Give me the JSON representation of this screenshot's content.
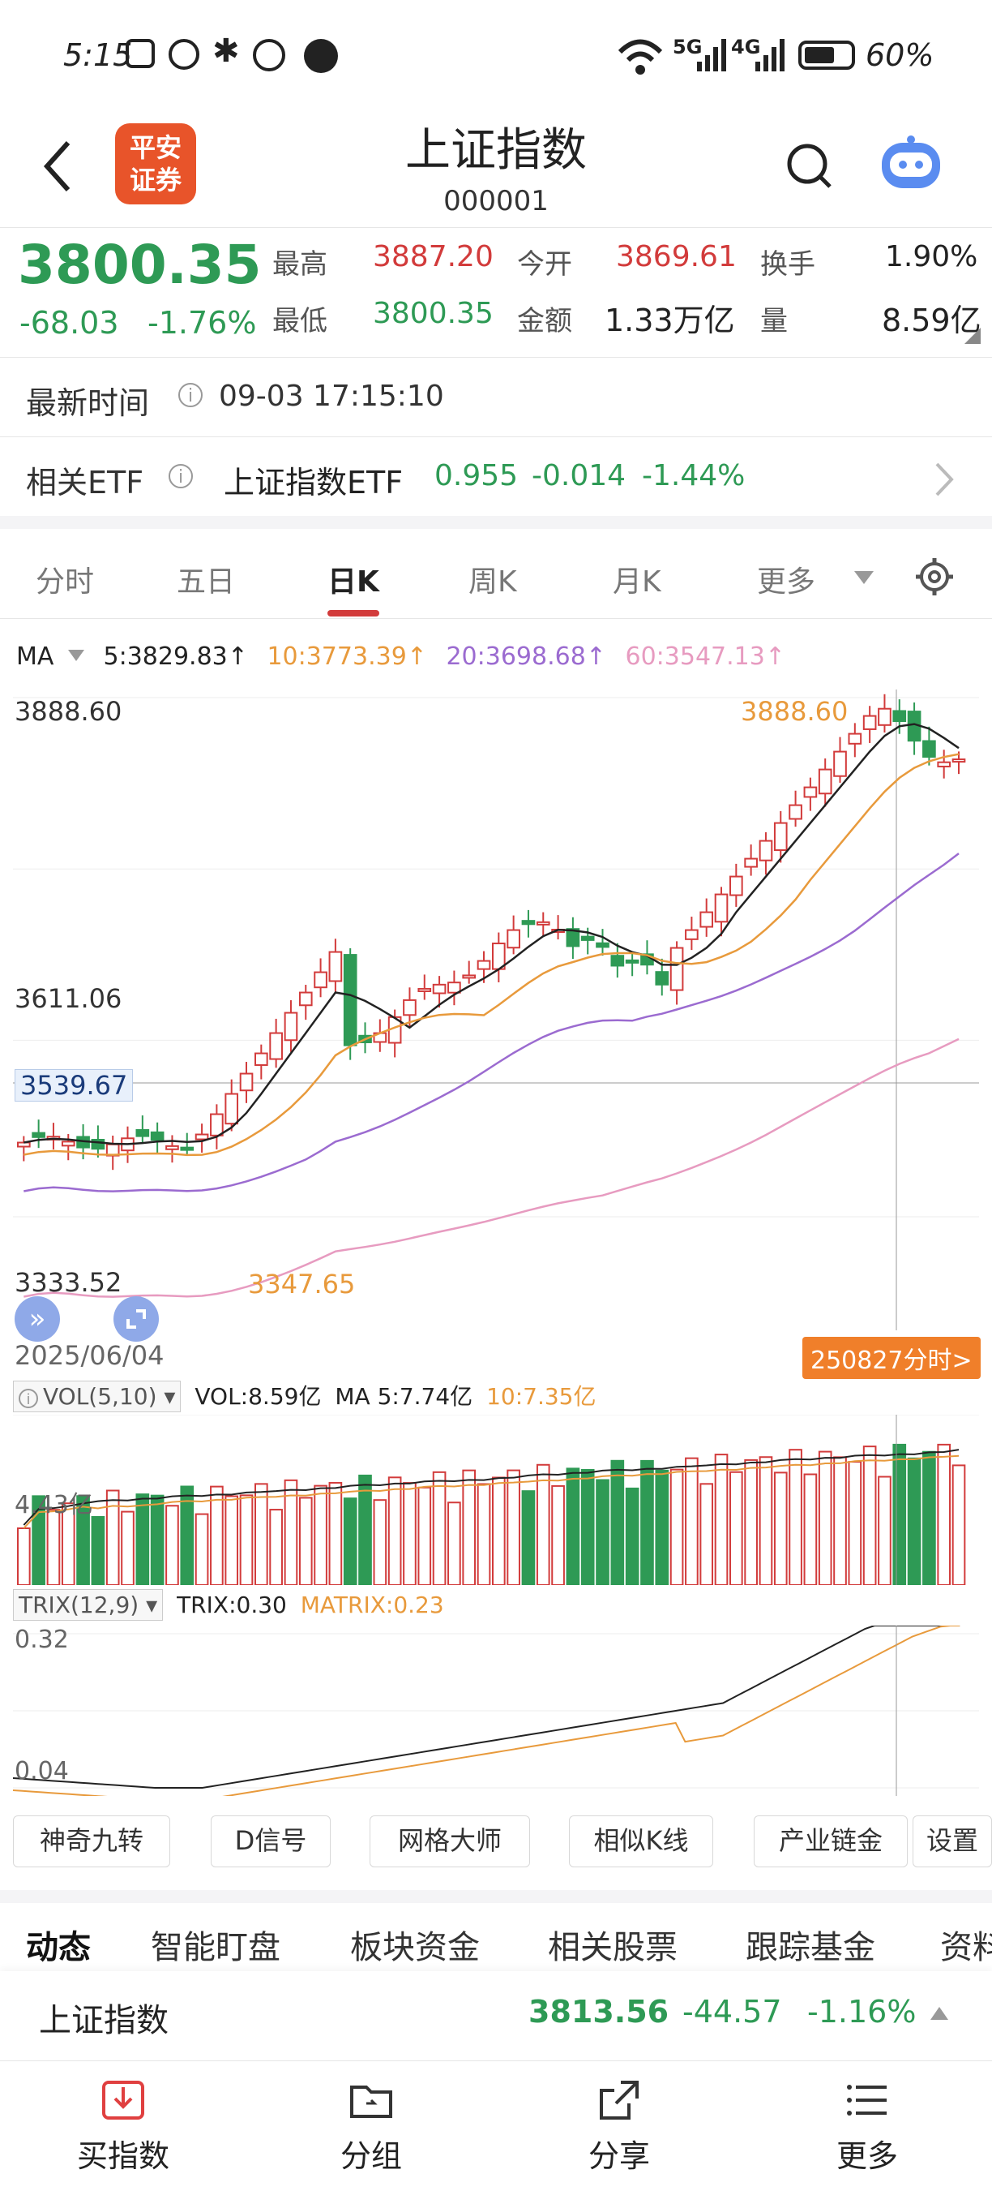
{
  "status_bar": {
    "time": "5:15",
    "battery": "60%",
    "net1": "5G",
    "net2": "4G"
  },
  "header": {
    "title": "上证指数",
    "code": "000001",
    "logo_line1": "平安",
    "logo_line2": "证券"
  },
  "quote": {
    "price": "3800.35",
    "change": "-68.03",
    "change_pct": "-1.76%",
    "high_label": "最高",
    "high": "3887.20",
    "low_label": "最低",
    "low": "3800.35",
    "open_label": "今开",
    "open": "3869.61",
    "amount_label": "金额",
    "amount": "1.33万亿",
    "turnover_label": "换手",
    "turnover": "1.90%",
    "volume_label": "量",
    "volume": "8.59亿"
  },
  "update": {
    "label": "最新时间",
    "time": "09-03 17:15:10"
  },
  "etf": {
    "label": "相关ETF",
    "name": "上证指数ETF",
    "price": "0.955",
    "change": "-0.014",
    "pct": "-1.44%"
  },
  "period_tabs": [
    "分时",
    "五日",
    "日K",
    "周K",
    "月K",
    "更多"
  ],
  "ma_legend": {
    "label": "MA",
    "ma5": "5:3829.83↑",
    "ma10": "10:3773.39↑",
    "ma20": "20:3698.68↑",
    "ma60": "60:3547.13↑"
  },
  "colors": {
    "up": "#d23b3b",
    "down": "#2e9a55",
    "ma5": "#222222",
    "ma10": "#e89a3c",
    "ma20": "#9b6bd0",
    "ma60": "#e79bc0",
    "accent": "#f07f2a"
  },
  "chart_labels": {
    "top": "3888.60",
    "mid": "3611.06",
    "cursor": "3539.67",
    "low_left": "3333.52",
    "max_marker": "3888.60",
    "min_marker": "3347.65",
    "date_left": "2025/06/04",
    "intraday_btn": "250827分时>"
  },
  "vol_legend": {
    "label": "VOL(5,10)",
    "vol": "VOL:8.59亿",
    "ma5": "MA 5:7.74亿",
    "ma10": "10:7.35亿",
    "axis": "4.43亿"
  },
  "trix_legend": {
    "label": "TRIX(12,9)",
    "trix": "TRIX:0.30",
    "matrix": "MATRIX:0.23",
    "axis_top": "0.32",
    "axis_bottom": "0.04"
  },
  "tools": [
    "神奇九转",
    "D信号",
    "网格大师",
    "相似K线",
    "产业链金",
    "设置"
  ],
  "section_tabs": [
    "动态",
    "智能盯盘",
    "板块资金",
    "相关股票",
    "跟踪基金",
    "资料"
  ],
  "ticker": {
    "name": "上证指数",
    "price": "3813.56",
    "change": "-44.57",
    "pct": "-1.16%"
  },
  "nav": [
    "买指数",
    "分组",
    "分享",
    "更多"
  ]
}
